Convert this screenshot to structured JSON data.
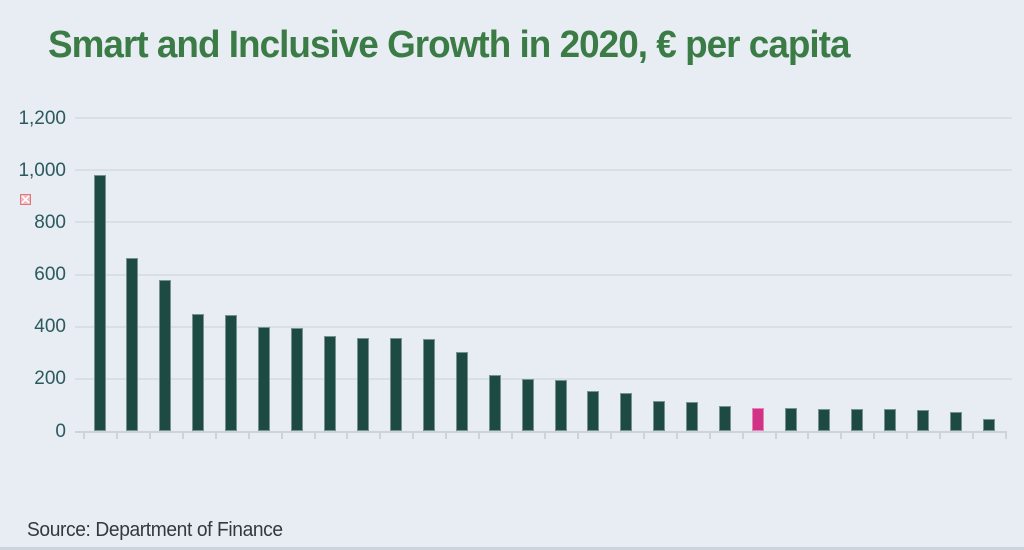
{
  "title": "Smart and Inclusive Growth in 2020, € per capita",
  "source": "Source: Department of Finance",
  "colors": {
    "background": "#e7edf3",
    "title_text": "#3b7b45",
    "bar": "#1d4b43",
    "highlight_bar": "#d23286",
    "axis_label": "#2a5a5e",
    "gridline": "#dadfe5",
    "axis_line": "#ccd3d9",
    "source_text": "#35393d"
  },
  "icons": {
    "broken_image": "broken-image-placeholder-icon"
  },
  "chart_data": {
    "type": "bar",
    "title": "Smart and Inclusive Growth in 2020, € per capita",
    "xlabel": "",
    "ylabel": "",
    "ylim": [
      0,
      1200
    ],
    "yticks": [
      0,
      200,
      400,
      600,
      800,
      1000,
      1200
    ],
    "ytick_labels": [
      "0",
      "200",
      "400",
      "600",
      "800",
      "1,000",
      "1,200"
    ],
    "x_tick_labels_visible": false,
    "grid": true,
    "legend": false,
    "num_bars": 28,
    "values": [
      980,
      665,
      580,
      450,
      445,
      400,
      395,
      365,
      357,
      355,
      352,
      303,
      215,
      200,
      195,
      155,
      145,
      115,
      112,
      95,
      90,
      88,
      85,
      85,
      84,
      80,
      73,
      45
    ],
    "highlighted_bar_index": 20,
    "bar_color": "#1d4b43",
    "highlight_color": "#d23286"
  }
}
